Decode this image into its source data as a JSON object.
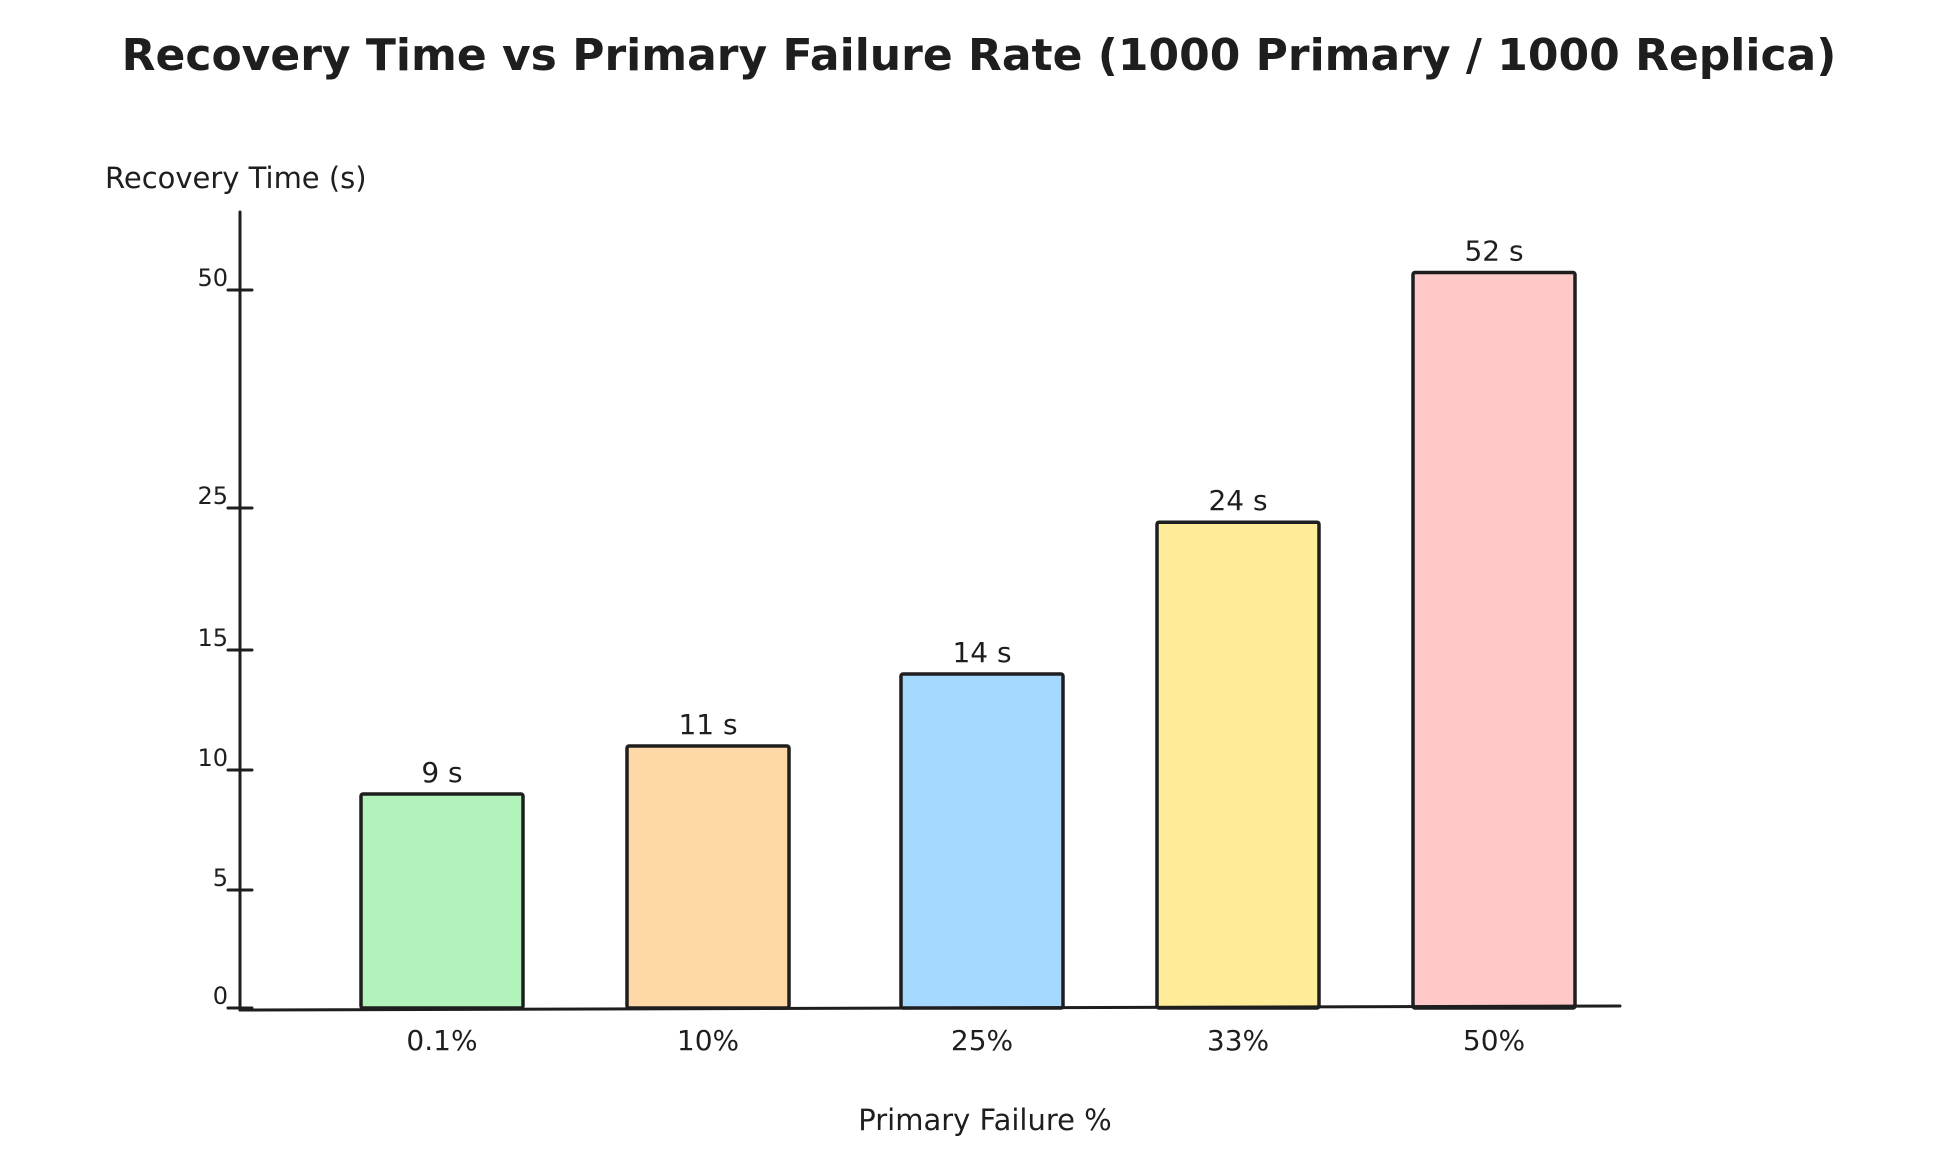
{
  "chart_data": {
    "type": "bar",
    "title": "Recovery Time vs Primary Failure Rate (1000 Primary / 1000 Replica)",
    "xlabel": "Primary Failure %",
    "ylabel": "Recovery Time (s)",
    "categories": [
      "0.1%",
      "10%",
      "25%",
      "33%",
      "50%"
    ],
    "values": [
      9,
      11,
      14,
      24,
      52
    ],
    "data_labels": [
      "9 s",
      "11 s",
      "14 s",
      "24 s",
      "52 s"
    ],
    "bar_colors": [
      "#b2f2bb",
      "#ffd8a8",
      "#a5d8ff",
      "#ffec99",
      "#ffc9c9"
    ],
    "y_ticks": [
      {
        "value": 0,
        "label": "0"
      },
      {
        "value": 5,
        "label": "5"
      },
      {
        "value": 10,
        "label": "10"
      },
      {
        "value": 15,
        "label": "15"
      },
      {
        "value": 25,
        "label": "25"
      },
      {
        "value": 50,
        "label": "50"
      }
    ],
    "grid": false,
    "legend": "none"
  }
}
